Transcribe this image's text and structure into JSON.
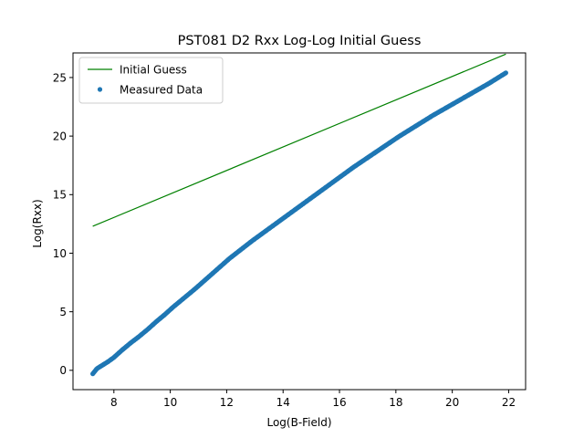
{
  "chart_data": {
    "type": "scatter",
    "title": "PST081 D2 Rxx Log-Log Initial Guess",
    "xlabel": "Log(B-Field)",
    "ylabel": "Log(Rxx)",
    "xlim": [
      6.55,
      22.6
    ],
    "ylim": [
      -1.65,
      27.1
    ],
    "x_ticks": [
      8,
      10,
      12,
      14,
      16,
      18,
      20,
      22
    ],
    "y_ticks": [
      0,
      5,
      10,
      15,
      20,
      25
    ],
    "grid": false,
    "legend_placement": "upper-left",
    "series": [
      {
        "name": "Initial Guess",
        "kind": "line",
        "color": "#008000",
        "x": [
          7.25,
          21.9
        ],
        "y": [
          12.3,
          27.0
        ]
      },
      {
        "name": "Measured Data",
        "kind": "scatter",
        "color": "#1f77b4",
        "x": [
          7.25,
          7.4,
          7.6,
          7.8,
          8.0,
          8.3,
          8.6,
          8.9,
          9.2,
          9.5,
          9.8,
          10.1,
          10.5,
          10.9,
          11.3,
          11.7,
          12.1,
          12.5,
          12.9,
          13.3,
          13.7,
          14.1,
          14.5,
          14.9,
          15.3,
          15.7,
          16.1,
          16.5,
          16.9,
          17.3,
          17.7,
          18.1,
          18.5,
          18.9,
          19.3,
          19.7,
          20.1,
          20.5,
          20.9,
          21.3,
          21.6,
          21.9
        ],
        "y": [
          -0.3,
          0.15,
          0.45,
          0.75,
          1.1,
          1.75,
          2.35,
          2.9,
          3.5,
          4.15,
          4.75,
          5.4,
          6.2,
          7.0,
          7.85,
          8.7,
          9.55,
          10.3,
          11.05,
          11.75,
          12.45,
          13.15,
          13.85,
          14.55,
          15.25,
          15.95,
          16.65,
          17.35,
          18.0,
          18.65,
          19.3,
          19.95,
          20.55,
          21.15,
          21.75,
          22.3,
          22.85,
          23.4,
          23.95,
          24.5,
          24.95,
          25.4
        ]
      }
    ]
  }
}
